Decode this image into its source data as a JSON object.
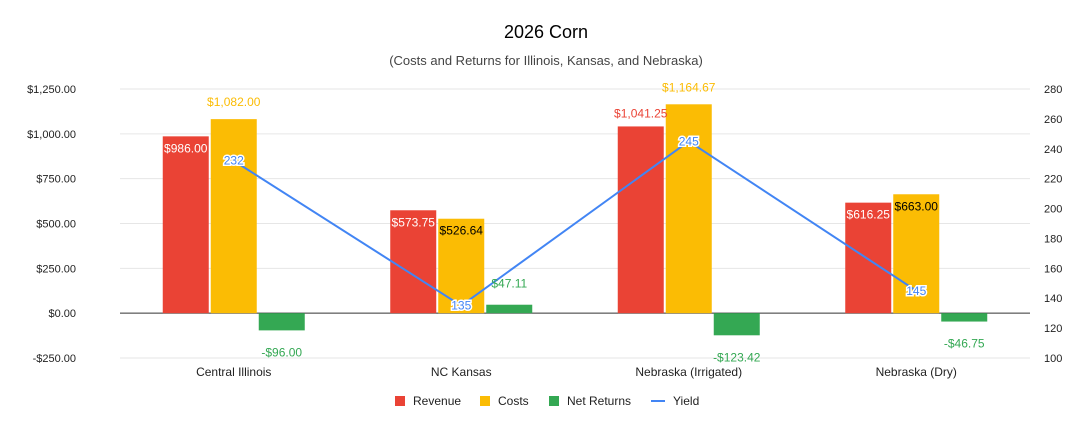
{
  "chart_data": {
    "type": "bar",
    "title": "2026 Corn",
    "subtitle": "(Costs and Returns for Illinois, Kansas, and Nebraska)",
    "categories": [
      "Central Illinois",
      "NC Kansas",
      "Nebraska (Irrigated)",
      "Nebraska (Dry)"
    ],
    "series": [
      {
        "name": "Revenue",
        "kind": "bar",
        "axis": "left",
        "color": "#ea4335",
        "values": [
          986.0,
          573.75,
          1041.25,
          616.25
        ],
        "labels": [
          "$986.00",
          "$573.75",
          "$1,041.25",
          "$616.25"
        ]
      },
      {
        "name": "Costs",
        "kind": "bar",
        "axis": "left",
        "color": "#fbbc04",
        "values": [
          1082.0,
          526.64,
          1164.67,
          663.0
        ],
        "labels": [
          "$1,082.00",
          "$526.64",
          "$1,164.67",
          "$663.00"
        ]
      },
      {
        "name": "Net Returns",
        "kind": "bar",
        "axis": "left",
        "color": "#34a853",
        "values": [
          -96.0,
          47.11,
          -123.42,
          -46.75
        ],
        "labels": [
          "-$96.00",
          "$47.11",
          "-$123.42",
          "-$46.75"
        ]
      },
      {
        "name": "Yield",
        "kind": "line",
        "axis": "right",
        "color": "#4285f4",
        "values": [
          232,
          135,
          245,
          145
        ],
        "labels": [
          "232",
          "135",
          "245",
          "145"
        ]
      }
    ],
    "y_left": {
      "min": -250,
      "max": 1250,
      "ticks": [
        -250,
        0,
        250,
        500,
        750,
        1000,
        1250
      ],
      "tick_labels": [
        "-$250.00",
        "$0.00",
        "$250.00",
        "$500.00",
        "$750.00",
        "$1,000.00",
        "$1,250.00"
      ]
    },
    "y_right": {
      "min": 100,
      "max": 280,
      "ticks": [
        100,
        120,
        140,
        160,
        180,
        200,
        220,
        240,
        260,
        280
      ],
      "tick_labels": [
        "100",
        "120",
        "140",
        "160",
        "180",
        "200",
        "220",
        "240",
        "260",
        "280"
      ]
    },
    "grid": true,
    "legend": "bottom"
  }
}
